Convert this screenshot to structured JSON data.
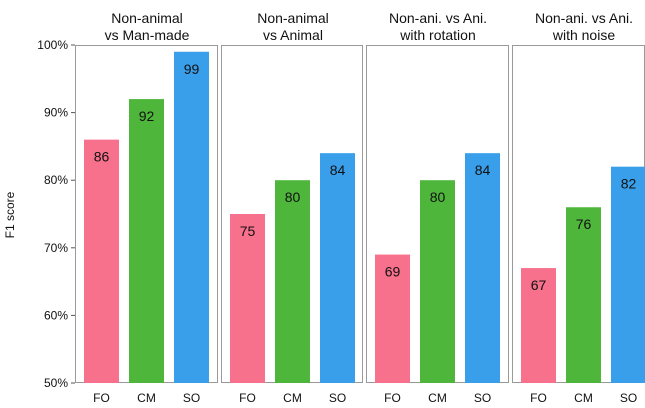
{
  "chart_data": {
    "type": "bar",
    "ylabel": "F1 score",
    "ylim": [
      50,
      100
    ],
    "yticks": [
      "50%",
      "60%",
      "70%",
      "80%",
      "90%",
      "100%"
    ],
    "ytick_values": [
      50,
      60,
      70,
      80,
      90,
      100
    ],
    "categories": [
      "FO",
      "CM",
      "SO"
    ],
    "colors": {
      "FO": "#f7708c",
      "CM": "#4fb63c",
      "SO": "#3a9fea"
    },
    "grid": false,
    "panels": [
      {
        "title_lines": [
          "Non-animal",
          "vs Man-made"
        ],
        "values": [
          86,
          92,
          99
        ]
      },
      {
        "title_lines": [
          "Non-animal",
          "vs Animal"
        ],
        "values": [
          75,
          80,
          84
        ]
      },
      {
        "title_lines": [
          "Non-ani. vs Ani.",
          "with rotation"
        ],
        "values": [
          69,
          80,
          84
        ]
      },
      {
        "title_lines": [
          "Non-ani. vs Ani.",
          "with noise"
        ],
        "values": [
          67,
          76,
          82
        ]
      }
    ]
  }
}
